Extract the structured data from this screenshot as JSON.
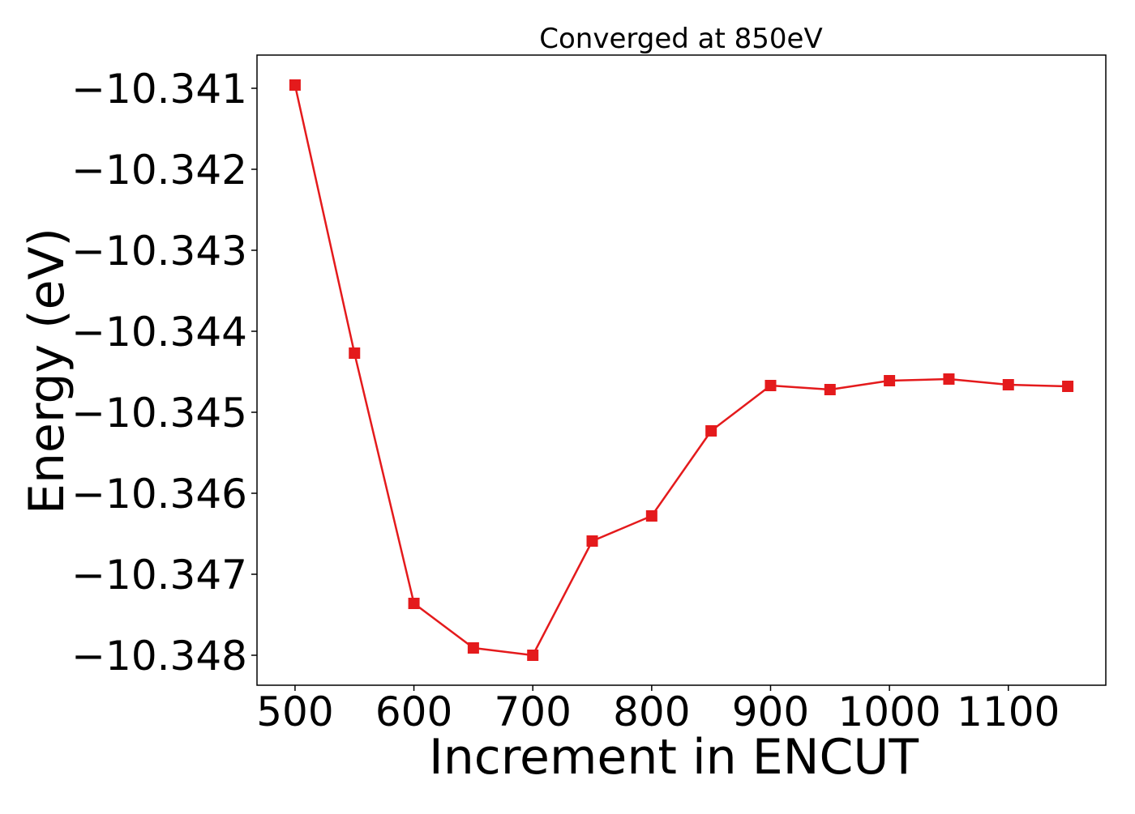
{
  "chart_data": {
    "type": "line",
    "title": "Converged at 850eV",
    "xlabel": "Increment in ENCUT",
    "ylabel": "Energy (eV)",
    "xlim": [
      468,
      1182
    ],
    "ylim": [
      -10.34837,
      -10.34059
    ],
    "xticks": [
      500,
      600,
      700,
      800,
      900,
      1000,
      1100
    ],
    "yticks": [
      -10.341,
      -10.342,
      -10.343,
      -10.344,
      -10.345,
      -10.346,
      -10.347,
      -10.348
    ],
    "ytick_labels": [
      "−10.341",
      "−10.342",
      "−10.343",
      "−10.344",
      "−10.345",
      "−10.346",
      "−10.347",
      "−10.348"
    ],
    "grid": false,
    "series": [
      {
        "color": "#e41a1c",
        "marker": "square",
        "x": [
          500,
          550,
          600,
          650,
          700,
          750,
          800,
          850,
          900,
          950,
          1000,
          1050,
          1100,
          1150
        ],
        "y": [
          -10.34096,
          -10.34427,
          -10.34736,
          -10.34791,
          -10.348,
          -10.34659,
          -10.34628,
          -10.34523,
          -10.34467,
          -10.34472,
          -10.34461,
          -10.34459,
          -10.34466,
          -10.34468
        ]
      }
    ]
  }
}
